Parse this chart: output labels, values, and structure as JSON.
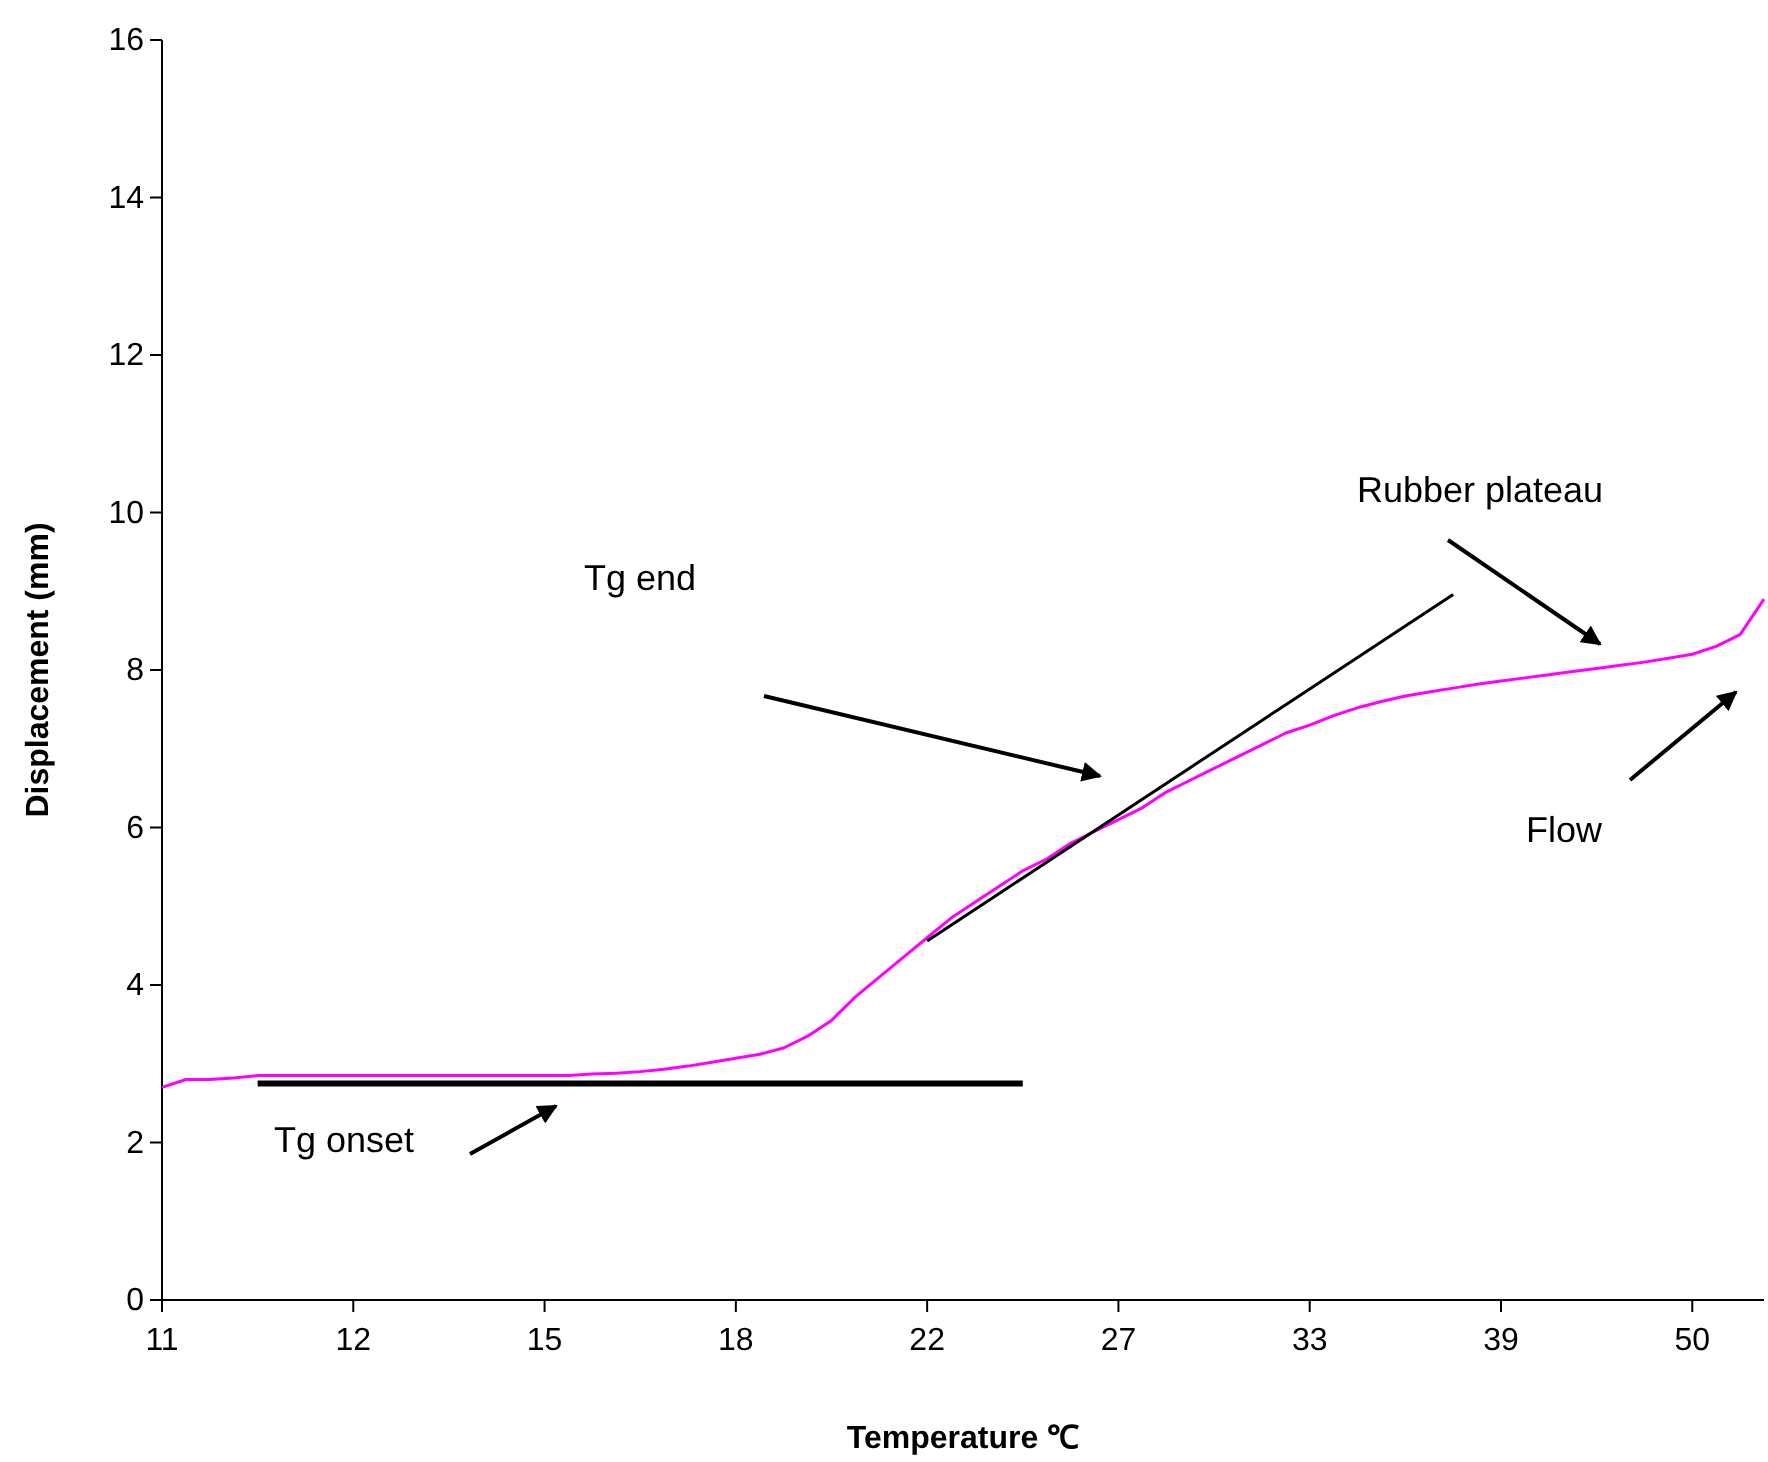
{
  "chart_data": {
    "type": "line",
    "xlabel": "Temperature ℃",
    "ylabel": "Displacement (mm)",
    "categories": [
      "11",
      null,
      null,
      null,
      null,
      null,
      null,
      null,
      "12",
      null,
      null,
      null,
      null,
      null,
      null,
      null,
      "15",
      null,
      null,
      null,
      null,
      null,
      null,
      null,
      "18",
      null,
      null,
      null,
      null,
      null,
      null,
      null,
      "22",
      null,
      null,
      null,
      null,
      null,
      null,
      null,
      "27",
      null,
      null,
      null,
      null,
      null,
      null,
      null,
      "33",
      null,
      null,
      null,
      null,
      null,
      null,
      null,
      "39",
      null,
      null,
      null,
      null,
      null,
      null,
      null,
      "50",
      null,
      null,
      null
    ],
    "ylim": [
      0,
      16
    ],
    "yticks": [
      0,
      2,
      4,
      6,
      8,
      10,
      12,
      14,
      16
    ],
    "grid": false,
    "marker": "none",
    "line_style": "solid",
    "series": [
      {
        "color": "#ff00ff",
        "values": [
          2.7,
          2.8,
          2.8,
          2.82,
          2.85,
          2.85,
          2.85,
          2.85,
          2.85,
          2.85,
          2.85,
          2.85,
          2.85,
          2.85,
          2.85,
          2.85,
          2.85,
          2.85,
          2.87,
          2.88,
          2.9,
          2.93,
          2.97,
          3.02,
          3.07,
          3.12,
          3.2,
          3.35,
          3.55,
          3.85,
          4.1,
          4.35,
          4.6,
          4.85,
          5.05,
          5.25,
          5.45,
          5.6,
          5.8,
          5.95,
          6.1,
          6.25,
          6.45,
          6.6,
          6.75,
          6.9,
          7.05,
          7.2,
          7.3,
          7.42,
          7.52,
          7.6,
          7.67,
          7.72,
          7.77,
          7.82,
          7.86,
          7.9,
          7.94,
          7.98,
          8.02,
          8.06,
          8.1,
          8.15,
          8.2,
          8.3,
          8.45,
          8.9
        ]
      },
      {
        "color": "#000000",
        "values": [
          null,
          null,
          null,
          null,
          2.75,
          2.75,
          2.75,
          2.75,
          2.75,
          2.75,
          2.75,
          2.75,
          2.75,
          2.75,
          2.75,
          2.75,
          2.75,
          2.75,
          2.75,
          2.75,
          2.75,
          2.75,
          2.75,
          2.75,
          2.75,
          2.75,
          2.75,
          2.75,
          2.75,
          2.75,
          2.75,
          2.75,
          2.75,
          2.75,
          2.75,
          2.75,
          2.75,
          null,
          null,
          null,
          null,
          null,
          null,
          null,
          null,
          null,
          null,
          null,
          null,
          null,
          null,
          null,
          null,
          null,
          null,
          null,
          null,
          null,
          null,
          null,
          null,
          null,
          null,
          null,
          null,
          null,
          null,
          null
        ]
      },
      {
        "color": "#000000",
        "values": [
          null,
          null,
          null,
          null,
          null,
          null,
          null,
          null,
          null,
          null,
          null,
          null,
          null,
          null,
          null,
          null,
          null,
          null,
          null,
          null,
          null,
          null,
          null,
          null,
          null,
          null,
          null,
          null,
          null,
          null,
          null,
          null,
          4.56,
          4.76,
          4.96,
          5.16,
          5.36,
          5.56,
          5.76,
          5.96,
          6.16,
          6.36,
          6.56,
          6.76,
          6.96,
          7.16,
          7.36,
          7.56,
          7.76,
          7.96,
          8.16,
          8.36,
          8.56,
          8.76,
          8.96,
          null,
          null,
          null,
          null,
          null,
          null,
          null,
          null,
          null,
          null,
          null,
          null,
          null
        ]
      }
    ],
    "annotations": [
      "Tg end",
      "Rubber plateau",
      "Flow",
      "Tg onset"
    ]
  }
}
